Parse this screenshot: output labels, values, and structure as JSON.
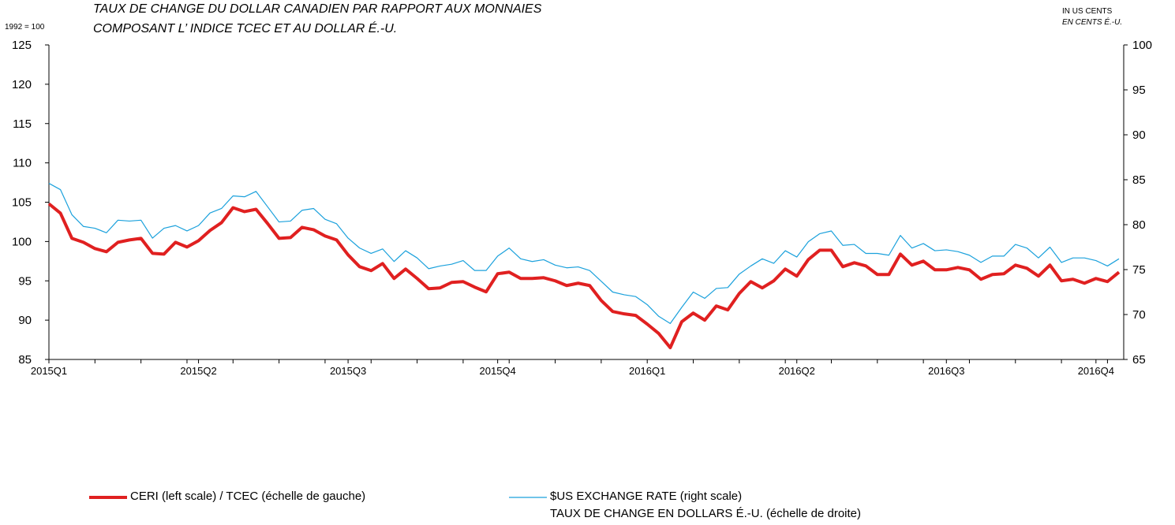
{
  "chart_data": {
    "type": "line",
    "title": [
      "TAUX DE CHANGE DU DOLLAR CANADIEN PAR RAPPORT AUX MONNAIES",
      "COMPOSANT L’ INDICE TCEC ET AU DOLLAR É.-U."
    ],
    "y_label": "1992 = 100",
    "y2_label": [
      "IN US CENTS",
      "EN CENTS É.-U."
    ],
    "categories": [
      "2015Q1",
      null,
      null,
      null,
      null,
      null,
      null,
      null,
      null,
      null,
      null,
      null,
      null,
      "2015Q2",
      null,
      null,
      null,
      null,
      null,
      null,
      null,
      null,
      null,
      null,
      null,
      null,
      "2015Q3",
      null,
      null,
      null,
      null,
      null,
      null,
      null,
      null,
      null,
      null,
      null,
      null,
      "2015Q4",
      null,
      null,
      null,
      null,
      null,
      null,
      null,
      null,
      null,
      null,
      null,
      null,
      "2016Q1",
      null,
      null,
      null,
      null,
      null,
      null,
      null,
      null,
      null,
      null,
      null,
      null,
      "2016Q2",
      null,
      null,
      null,
      null,
      null,
      null,
      null,
      null,
      null,
      null,
      null,
      null,
      "2016Q3",
      null,
      null,
      null,
      null,
      null,
      null,
      null,
      null,
      null,
      null,
      null,
      null,
      "2016Q4",
      null,
      null
    ],
    "series": [
      {
        "name": "CERI (left scale) / TCEC (échelle de gauche)",
        "color": "#e02020",
        "width": 4,
        "values": [
          104.8,
          103.6,
          100.4,
          99.9,
          99.1,
          98.7,
          99.9,
          100.2,
          100.4,
          98.5,
          98.4,
          99.9,
          99.3,
          100.1,
          101.4,
          102.4,
          104.3,
          103.8,
          104.1,
          102.3,
          100.4,
          100.5,
          101.8,
          101.5,
          100.7,
          100.2,
          98.3,
          96.8,
          96.3,
          97.2,
          95.3,
          96.5,
          95.3,
          94.0,
          94.1,
          94.8,
          94.9,
          94.2,
          93.6,
          95.9,
          96.1,
          95.3,
          95.3,
          95.4,
          95.0,
          94.4,
          94.7,
          94.4,
          92.5,
          91.1,
          90.8,
          90.6,
          89.5,
          88.3,
          86.5,
          89.8,
          90.9,
          90.0,
          91.8,
          91.3,
          93.4,
          94.9,
          94.1,
          95.0,
          96.5,
          95.6,
          97.7,
          98.9,
          98.9,
          96.8,
          97.3,
          96.9,
          95.8,
          95.8,
          98.4,
          97.0,
          97.5,
          96.4,
          96.4,
          96.7,
          96.4,
          95.2,
          95.8,
          95.9,
          97.0,
          96.6,
          95.6,
          97.0,
          95.0,
          95.2,
          94.7,
          95.3,
          94.9,
          96.1
        ]
      },
      {
        "name": "$US EXCHANGE RATE (right scale)\nTAUX DE CHANGE EN DOLLARS É.-U. (échelle de droite)",
        "color": "#1ba1dc",
        "width": 1.2,
        "axis": "y2",
        "values": [
          84.6,
          83.9,
          81.1,
          79.8,
          79.6,
          79.1,
          80.5,
          80.4,
          80.5,
          78.5,
          79.6,
          79.9,
          79.3,
          79.9,
          81.3,
          81.8,
          83.2,
          83.1,
          83.7,
          82.0,
          80.3,
          80.4,
          81.6,
          81.8,
          80.6,
          80.1,
          78.5,
          77.4,
          76.8,
          77.3,
          75.9,
          77.1,
          76.3,
          75.1,
          75.4,
          75.6,
          76.0,
          74.9,
          74.9,
          76.5,
          77.4,
          76.2,
          75.9,
          76.1,
          75.5,
          75.2,
          75.3,
          74.9,
          73.7,
          72.5,
          72.2,
          72.0,
          71.1,
          69.8,
          69.0,
          70.8,
          72.5,
          71.8,
          72.9,
          73.0,
          74.5,
          75.4,
          76.2,
          75.7,
          77.1,
          76.4,
          78.1,
          79.0,
          79.3,
          77.7,
          77.8,
          76.8,
          76.8,
          76.6,
          78.8,
          77.4,
          77.9,
          77.1,
          77.2,
          77.0,
          76.6,
          75.8,
          76.5,
          76.5,
          77.8,
          77.4,
          76.3,
          77.5,
          75.8,
          76.3,
          76.3,
          76.0,
          75.4,
          76.2
        ]
      }
    ],
    "ylim": [
      85,
      125
    ],
    "yticks": [
      85,
      90,
      95,
      100,
      105,
      110,
      115,
      120,
      125
    ],
    "y2lim": [
      65,
      100
    ],
    "y2ticks": [
      65,
      70,
      75,
      80,
      85,
      90,
      95,
      100
    ],
    "grid": false
  }
}
